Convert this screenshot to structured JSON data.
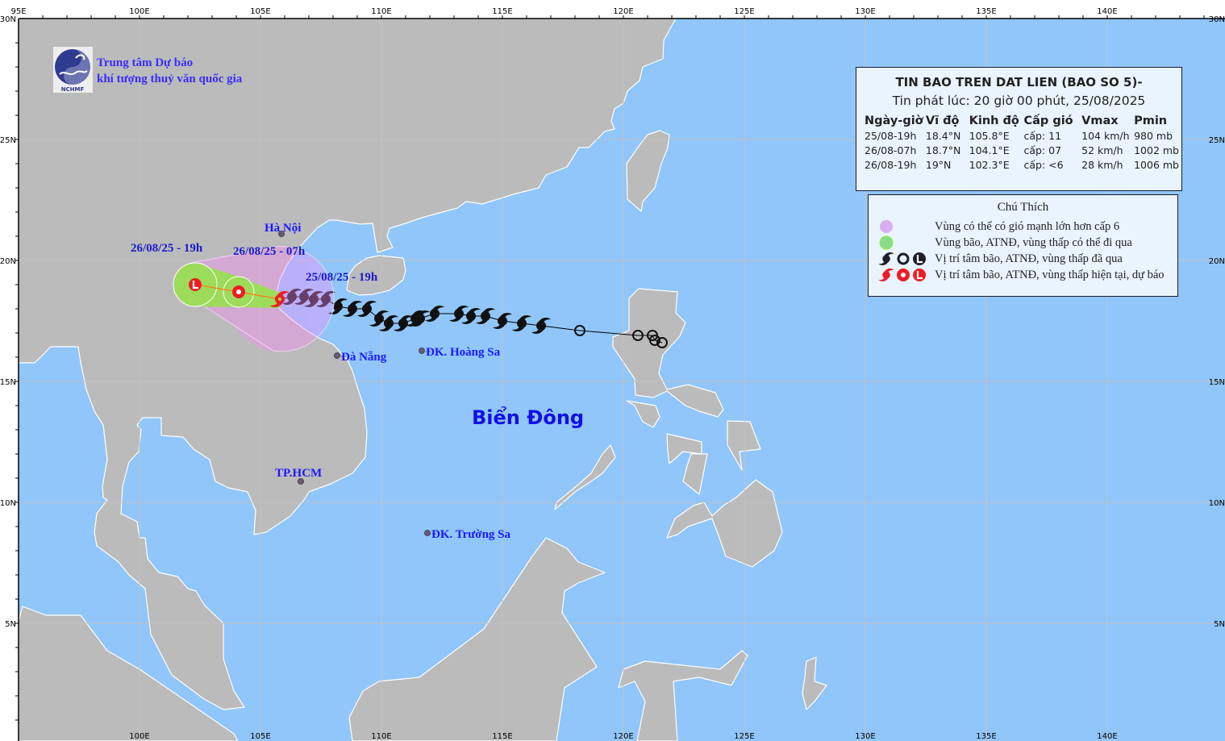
{
  "organization": {
    "line1": "Trung tâm Dự báo",
    "line2": "khí tượng thuỷ văn quốc gia",
    "logo_text": "NCHMF"
  },
  "axes": {
    "lon_labels": [
      "95E",
      "100E",
      "105E",
      "110E",
      "115E",
      "120E",
      "125E",
      "130E",
      "135E",
      "140E"
    ],
    "lat_labels": [
      "30N",
      "25N",
      "20N",
      "15N",
      "10N",
      "5N"
    ],
    "lon_range": [
      95,
      145
    ],
    "lat_range": [
      0,
      30
    ],
    "grid_step_deg": 5
  },
  "colors": {
    "sea": "#90c6fa",
    "land": "#bbbbbb",
    "cone": "#fe8dfe",
    "storm_area": "#9ddc5a",
    "past": "#111111",
    "forecast": "#ee1c25",
    "label": "#1a1aff"
  },
  "info": {
    "title": "TIN BAO TREN DAT LIEN (BAO SO 5)-",
    "issued": "Tin phát lúc: 20 giờ 00 phút, 25/08/2025",
    "headers": [
      "Ngày-giờ",
      "Vĩ độ",
      "Kinh độ",
      "Cấp gió",
      "Vmax",
      "Pmin"
    ],
    "rows": [
      [
        "25/08-19h",
        "18.4°N",
        "105.8°E",
        "cấp: 11",
        "104 km/h",
        "980 mb"
      ],
      [
        "26/08-07h",
        "18.7°N",
        "104.1°E",
        "cấp: 07",
        "52 km/h",
        "1002 mb"
      ],
      [
        "26/08-19h",
        "19°N",
        "102.3°E",
        "cấp: <6",
        "28 km/h",
        "1006 mb"
      ]
    ]
  },
  "legend": {
    "title": "Chú Thích",
    "items": [
      {
        "label": "Vùng có thể có gió mạnh lớn hơn cấp 6",
        "icon": "purple-circle"
      },
      {
        "label": "Vùng bão, ATNĐ, vùng thấp có thể đi qua",
        "icon": "green-circle"
      },
      {
        "label": "Vị trí tâm bão, ATNĐ, vùng thấp đã qua",
        "icon": "black-storm-symbols"
      },
      {
        "label": "Vị trí tâm bão, ATNĐ, vùng thấp hiện tại, dự báo",
        "icon": "red-storm-symbols"
      }
    ]
  },
  "places": {
    "hanoi": "Hà Nội",
    "danang": "Đà Nẵng",
    "hoangsa": "ĐK. Hoàng Sa",
    "hcm": "TP.HCM",
    "truongsa": "ĐK. Trường Sa",
    "sea": "Biển Đông"
  },
  "time_labels": {
    "current": "25/08/25 - 19h",
    "f12": "26/08/25 - 07h",
    "f24": "26/08/25 - 19h"
  },
  "storm": {
    "current": {
      "lon": 105.8,
      "lat": 18.4,
      "type": "storm"
    },
    "forecast": [
      {
        "lon": 104.1,
        "lat": 18.7,
        "type": "depression"
      },
      {
        "lon": 102.3,
        "lat": 19.0,
        "type": "low"
      }
    ],
    "past_storm": [
      [
        106.3,
        18.5
      ],
      [
        106.8,
        18.5
      ],
      [
        107.2,
        18.4
      ],
      [
        107.7,
        18.4
      ],
      [
        108.2,
        18.1
      ],
      [
        108.8,
        18.0
      ],
      [
        109.4,
        18.0
      ],
      [
        109.9,
        17.6
      ],
      [
        110.3,
        17.4
      ],
      [
        110.9,
        17.4
      ],
      [
        111.4,
        17.6
      ],
      [
        111.6,
        17.6
      ],
      [
        112.2,
        17.8
      ],
      [
        113.2,
        17.8
      ],
      [
        113.7,
        17.7
      ],
      [
        114.3,
        17.7
      ],
      [
        115.0,
        17.5
      ],
      [
        115.8,
        17.4
      ],
      [
        116.6,
        17.3
      ]
    ],
    "past_depression": [
      [
        118.2,
        17.1
      ],
      [
        120.6,
        16.9
      ],
      [
        121.2,
        16.9
      ],
      [
        121.3,
        16.7
      ],
      [
        121.6,
        16.6
      ]
    ]
  }
}
